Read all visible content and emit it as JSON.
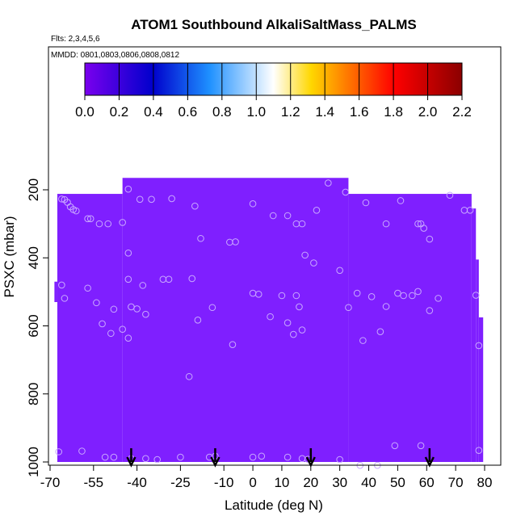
{
  "chart_data": {
    "type": "scatter",
    "title": "ATOM1 Southbound AlkaliSaltMass_PALMS",
    "flights_label": "Flts: 2,3,4,5,6",
    "dates_label": "MMDD: 0801,0803,0806,0808,0812",
    "xlabel": "Latitude (deg N)",
    "ylabel": "PSXC (mbar)",
    "xlim": [
      -70,
      80
    ],
    "ylim": [
      1000,
      100
    ],
    "y_reversed": true,
    "xticks": [
      -70,
      -55,
      -40,
      -25,
      -10,
      0,
      10,
      20,
      30,
      40,
      50,
      60,
      70,
      80
    ],
    "xtick_labels": [
      "-70",
      "-55",
      "-40",
      "-25",
      "-10",
      "0",
      "10",
      "20",
      "30",
      "40",
      "50",
      "60",
      "70",
      "80"
    ],
    "yticks": [
      200,
      400,
      600,
      800,
      1000
    ],
    "ytick_labels": [
      "200",
      "400",
      "600",
      "800",
      "1000"
    ],
    "colorbar": {
      "ticks": [
        0.0,
        0.2,
        0.4,
        0.6,
        0.8,
        1.0,
        1.2,
        1.4,
        1.6,
        1.8,
        2.0,
        2.2
      ],
      "tick_labels": [
        "0.0",
        "0.2",
        "0.4",
        "0.6",
        "0.8",
        "1.0",
        "1.2",
        "1.4",
        "1.6",
        "1.8",
        "2.0",
        "2.2"
      ],
      "colors": [
        "#7a00ee",
        "#0000cc",
        "#1e90ff",
        "#ffffff",
        "#ffd700",
        "#ff0000",
        "#8b0000"
      ]
    },
    "fill_value": 0.0,
    "fill_color": "#7f1fff",
    "marker_color": "#c9a8ff",
    "flight_arrows_lat": [
      -42,
      -13,
      20,
      61
    ],
    "points": [
      [
        -66,
        227
      ],
      [
        -65,
        229
      ],
      [
        -64,
        237
      ],
      [
        -63,
        250
      ],
      [
        -62,
        258
      ],
      [
        -61,
        262
      ],
      [
        -57,
        285
      ],
      [
        -56,
        285
      ],
      [
        -53,
        300
      ],
      [
        -50,
        300
      ],
      [
        -45,
        296
      ],
      [
        -43,
        198
      ],
      [
        -39,
        228
      ],
      [
        -35,
        228
      ],
      [
        -28,
        226
      ],
      [
        -20,
        248
      ],
      [
        -18,
        343
      ],
      [
        -8,
        354
      ],
      [
        0,
        241
      ],
      [
        7,
        276
      ],
      [
        12,
        276
      ],
      [
        15,
        300
      ],
      [
        17,
        300
      ],
      [
        22,
        260
      ],
      [
        26,
        180
      ],
      [
        32,
        207
      ],
      [
        39,
        238
      ],
      [
        46,
        300
      ],
      [
        51,
        232
      ],
      [
        57,
        300
      ],
      [
        58,
        300
      ],
      [
        59,
        313
      ],
      [
        61,
        345
      ],
      [
        68,
        216
      ],
      [
        73,
        260
      ],
      [
        75,
        260
      ],
      [
        -43,
        386
      ],
      [
        -43,
        463
      ],
      [
        -38,
        481
      ],
      [
        -31,
        463
      ],
      [
        -29,
        463
      ],
      [
        -21,
        461
      ],
      [
        -14,
        546
      ],
      [
        -6,
        353
      ],
      [
        0,
        504
      ],
      [
        2,
        507
      ],
      [
        6,
        573
      ],
      [
        10,
        511
      ],
      [
        12,
        591
      ],
      [
        15,
        511
      ],
      [
        16,
        544
      ],
      [
        18,
        392
      ],
      [
        21,
        415
      ],
      [
        30,
        437
      ],
      [
        33,
        546
      ],
      [
        36,
        504
      ],
      [
        38,
        643
      ],
      [
        41,
        514
      ],
      [
        44,
        617
      ],
      [
        46,
        543
      ],
      [
        50,
        504
      ],
      [
        52,
        511
      ],
      [
        55,
        511
      ],
      [
        57,
        499
      ],
      [
        61,
        555
      ],
      [
        64,
        519
      ],
      [
        77,
        510
      ],
      [
        -66,
        480
      ],
      [
        -65,
        519
      ],
      [
        -57,
        489
      ],
      [
        -54,
        532
      ],
      [
        -52,
        594
      ],
      [
        -49,
        622
      ],
      [
        -48,
        551
      ],
      [
        -45,
        610
      ],
      [
        -43,
        636
      ],
      [
        -42,
        544
      ],
      [
        -40,
        550
      ],
      [
        -37,
        566
      ],
      [
        -19,
        583
      ],
      [
        -22,
        749
      ],
      [
        -7,
        655
      ],
      [
        14,
        625
      ],
      [
        17,
        612
      ],
      [
        78,
        658
      ],
      [
        -67,
        970
      ],
      [
        -59,
        968
      ],
      [
        -51,
        986
      ],
      [
        -48,
        986
      ],
      [
        -42,
        990
      ],
      [
        -37,
        990
      ],
      [
        -33,
        993
      ],
      [
        -25,
        986
      ],
      [
        -15,
        986
      ],
      [
        -13,
        983
      ],
      [
        0,
        986
      ],
      [
        3,
        983
      ],
      [
        12,
        986
      ],
      [
        17,
        990
      ],
      [
        19,
        992
      ],
      [
        30,
        993
      ],
      [
        37,
        1010
      ],
      [
        43,
        1010
      ],
      [
        49,
        952
      ],
      [
        58,
        952
      ],
      [
        78,
        966
      ]
    ]
  }
}
